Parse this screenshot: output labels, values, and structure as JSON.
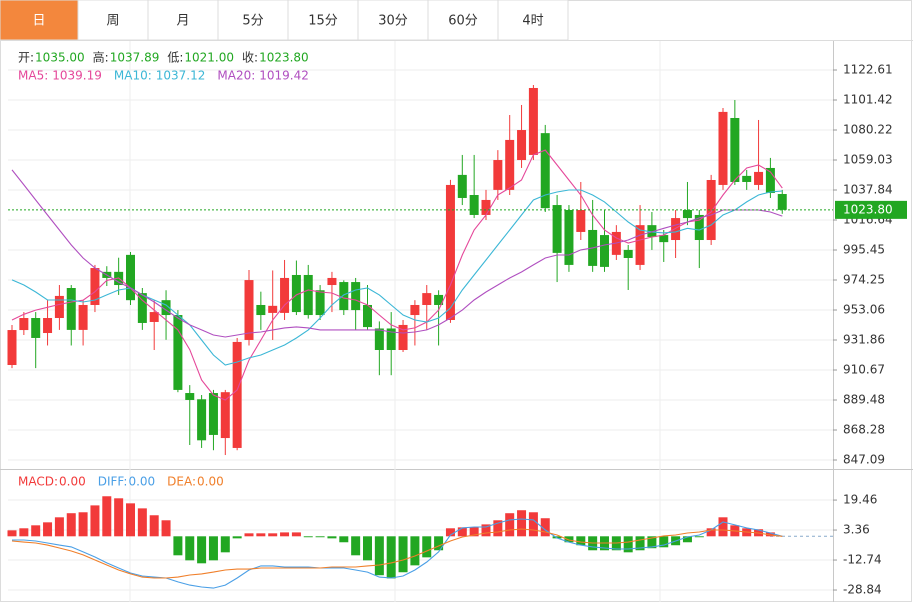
{
  "tabs": [
    "日",
    "周",
    "月",
    "5分",
    "15分",
    "30分",
    "60分",
    "4时"
  ],
  "active_tab": 0,
  "chart_data": {
    "type": "candlestick",
    "ohlc_info": [
      {
        "name": "开:",
        "value": 1035,
        "label": "1035.00"
      },
      {
        "name": "高:",
        "value": 1037.89,
        "label": "1037.89"
      },
      {
        "name": "低:",
        "value": 1021,
        "label": "1021.00"
      },
      {
        "name": "收:",
        "value": 1023.8,
        "label": "1023.80"
      }
    ],
    "up_color": "#f23a3a",
    "down_color": "#22a722",
    "open": [
      914.2,
      938.9,
      947.4,
      936.8,
      947.4,
      968.6,
      939,
      956.6,
      980,
      980,
      992,
      965,
      944.6,
      960,
      949.5,
      894.4,
      890,
      894.4,
      862.6,
      855.6,
      931.9,
      956.6,
      951,
      951,
      977.8,
      977.8,
      967,
      970.7,
      972.8,
      972.8,
      956.6,
      940,
      940,
      924.8,
      949.5,
      956.6,
      963.7,
      946,
      1048.5,
      1034.3,
      1020.2,
      1037.9,
      1037.9,
      1059,
      1062.6,
      1078,
      1027.2,
      1023.7,
      1008.2,
      1009.6,
      1006,
      992,
      995.5,
      984.9,
      1013,
      1006,
      1002.5,
      1023.7,
      1020.2,
      1002.5,
      1041.4,
      1088.7,
      1047.8,
      1041.4,
      1053.4,
      1035
    ],
    "high": [
      942.5,
      951.6,
      951.6,
      960,
      970.7,
      970.7,
      960,
      984.9,
      984,
      990,
      994,
      968.6,
      960,
      967,
      953,
      900,
      893,
      896.6,
      896.6,
      933.3,
      981.3,
      966,
      981,
      988.4,
      988,
      984.9,
      970.7,
      980,
      974,
      975.7,
      970.7,
      945,
      951.6,
      946,
      960,
      970.7,
      967,
      1045,
      1062.6,
      1062.6,
      1037.9,
      1066,
      1090.8,
      1097.9,
      1112,
      1083.8,
      1034.3,
      1027.2,
      1043.5,
      1030.8,
      1023.7,
      1013,
      999,
      1027.2,
      1022.3,
      1009.6,
      1023.7,
      1043.5,
      1023.7,
      1048.5,
      1095.8,
      1101.4,
      1052,
      1087.3,
      1060.5,
      1037.89
    ],
    "low": [
      912,
      935.4,
      912,
      928,
      939,
      928,
      928,
      951.6,
      970,
      963.7,
      956.6,
      939,
      924.8,
      932,
      895,
      857.7,
      855.6,
      854,
      850.6,
      854,
      928,
      939,
      931.9,
      946,
      949.5,
      947,
      946,
      951.6,
      949.5,
      939,
      939,
      907,
      907,
      923.4,
      928,
      939,
      928,
      944,
      1027.2,
      1018,
      1016.6,
      1030.8,
      1034.3,
      1053.4,
      1059,
      1022.3,
      972.8,
      980,
      1002.5,
      980,
      980,
      988.4,
      967.2,
      981.3,
      995.5,
      987,
      989.8,
      1013,
      982.7,
      999,
      1037.9,
      1041.4,
      1037.9,
      1037.9,
      1032.2,
      1021
    ],
    "close": [
      938.9,
      947.4,
      933.3,
      947.4,
      963,
      939,
      956.6,
      982.7,
      975.7,
      970.7,
      960,
      943.9,
      951.6,
      949.5,
      896.6,
      889.5,
      861,
      864.8,
      895,
      930.5,
      974.2,
      949.5,
      956,
      975.7,
      951.6,
      949.5,
      949.5,
      975.7,
      953,
      953,
      941,
      924.8,
      924.8,
      942.5,
      956.6,
      965,
      956.6,
      1041.4,
      1032.2,
      1020.2,
      1030.8,
      1059,
      1073.2,
      1080.2,
      1109.9,
      1025,
      993.4,
      984.9,
      1023.7,
      984.2,
      983.5,
      1008.2,
      989.8,
      1013,
      1004.6,
      1001,
      1018,
      1018,
      1002.5,
      1044.9,
      1093,
      1043.5,
      1043.5,
      1050.6,
      1035.7,
      1023.8
    ],
    "series": [
      {
        "name": "MA5:",
        "color": "#e5489a",
        "values": [
          946,
          950,
          953,
          955,
          957,
          958.7,
          960,
          966,
          974,
          975.7,
          968.6,
          960,
          953,
          946,
          939,
          925,
          903.6,
          893,
          889.5,
          896.6,
          917.7,
          931.9,
          946,
          956.6,
          963.7,
          967.2,
          965.8,
          965.1,
          961.5,
          960.1,
          956.6,
          949.5,
          942.5,
          939,
          940.4,
          944.6,
          953,
          970.7,
          991.9,
          1009.6,
          1020.2,
          1034.3,
          1039.3,
          1044.9,
          1062.6,
          1066,
          1055.5,
          1044.9,
          1034.3,
          1020.2,
          1009.6,
          1003.9,
          1000.4,
          1002.5,
          1004.6,
          1006,
          1010.8,
          1015.2,
          1016.6,
          1022.3,
          1034.3,
          1044.9,
          1053.4,
          1055.5,
          1050.6,
          1039.19
        ]
      },
      {
        "name": "MA10:",
        "color": "#3cb7d6",
        "values": [
          974.3,
          970.7,
          965.8,
          960.1,
          960.1,
          960.1,
          958.7,
          960.1,
          963.7,
          967.2,
          968.6,
          963.7,
          960.1,
          956.6,
          949.5,
          942.5,
          931.9,
          921.3,
          914.2,
          916.3,
          919.2,
          921.3,
          924.8,
          928.3,
          933.3,
          939,
          947.4,
          956.6,
          963.7,
          967.2,
          968.6,
          963.7,
          956.6,
          949.5,
          946,
          944.6,
          947.4,
          954.5,
          967.2,
          977.8,
          988.4,
          999,
          1009.6,
          1020.2,
          1030.8,
          1034.3,
          1036.4,
          1037.8,
          1037.8,
          1034.3,
          1029.4,
          1022.3,
          1015.2,
          1009.6,
          1008.2,
          1007.5,
          1008.2,
          1010.8,
          1009.6,
          1013.1,
          1020.2,
          1023.7,
          1029.4,
          1034.3,
          1036.4,
          1037.12
        ]
      },
      {
        "name": "MA20:",
        "color": "#b04fc0",
        "values": [
          1052,
          1041.4,
          1030.8,
          1020.2,
          1009.6,
          999,
          989.8,
          982.7,
          977.8,
          972.8,
          968.6,
          963.7,
          958.7,
          953,
          947.4,
          942.5,
          939,
          935.4,
          934,
          935.4,
          936.8,
          937.5,
          939,
          940.4,
          941.1,
          940.4,
          939,
          939,
          939,
          939,
          939,
          939,
          937.5,
          936.8,
          937.5,
          939,
          942.5,
          947.4,
          953,
          960.1,
          965.8,
          970.7,
          975.7,
          979.9,
          984.9,
          989.8,
          991.9,
          991.9,
          995.5,
          996.9,
          999,
          1000.4,
          1002.5,
          1006,
          1008.2,
          1010.8,
          1013.1,
          1015.2,
          1018.1,
          1020.2,
          1023.7,
          1023.7,
          1023.7,
          1023.7,
          1022.3,
          1019.42
        ]
      }
    ],
    "last_price": {
      "value": 1023.8,
      "label": "1023.80"
    },
    "ylim": [
      841.44,
      1141.68
    ],
    "yticks": [
      1122.61,
      1101.42,
      1080.22,
      1059.03,
      1037.84,
      1016.64,
      995.45,
      974.25,
      953.06,
      931.86,
      910.67,
      889.48,
      868.28,
      847.09
    ],
    "grid": true,
    "macd_legend": [
      {
        "name": "MACD:",
        "value": 0,
        "label": "0.00",
        "color": "#f23a3a"
      },
      {
        "name": "DIFF:",
        "value": 0,
        "label": "0.00",
        "color": "#4a9fe6"
      },
      {
        "name": "DEA:",
        "value": 0,
        "label": "0.00",
        "color": "#f07f2a"
      }
    ],
    "macd": [
      3.2,
      4.3,
      5.9,
      7.5,
      10.2,
      12.4,
      12.9,
      16.6,
      21.5,
      20.4,
      17.7,
      15,
      11.3,
      8.6,
      -10.2,
      -12.9,
      -14.5,
      -12.9,
      -8.6,
      -1.1,
      1.6,
      1.6,
      1.6,
      2.1,
      2.1,
      -0.5,
      -0.5,
      -1.1,
      -3.2,
      -10.2,
      -12.9,
      -20.9,
      -22.6,
      -19.3,
      -15.6,
      -11.3,
      -7.5,
      4.3,
      4.8,
      4.8,
      6.4,
      8.6,
      12.4,
      14,
      12.9,
      9.7,
      -1.1,
      -3.2,
      -4.8,
      -7.5,
      -7.5,
      -7.5,
      -8.6,
      -7.5,
      -6.4,
      -5.9,
      -4.8,
      -3.2,
      -0.5,
      4.3,
      10.2,
      5.9,
      4.3,
      3.8,
      2.1,
      0
    ],
    "diff": [
      -2.0,
      -2.0,
      -2.5,
      -3.6,
      -4.7,
      -5.7,
      -8.4,
      -11.1,
      -14.3,
      -17.0,
      -19.7,
      -21.3,
      -21.9,
      -22.4,
      -24.5,
      -26.2,
      -27.2,
      -27.8,
      -26.2,
      -22.4,
      -18.1,
      -15.9,
      -15.9,
      -16.5,
      -16.5,
      -16.5,
      -17.0,
      -17.0,
      -17.0,
      -18.1,
      -19.2,
      -21.9,
      -22.4,
      -21.3,
      -18.1,
      -13.8,
      -8.4,
      0.7,
      4.5,
      5.0,
      5.0,
      7.1,
      8.8,
      9.3,
      8.8,
      3.4,
      -0.9,
      -3.1,
      -4.7,
      -5.7,
      -6.3,
      -6.8,
      -6.8,
      -6.3,
      -5.7,
      -4.7,
      -2.5,
      -0.4,
      0.7,
      3.4,
      7.7,
      6.1,
      4.5,
      3.4,
      1.8,
      0
    ],
    "dea": [
      -2.5,
      -3.1,
      -3.6,
      -4.7,
      -6.3,
      -7.9,
      -10.0,
      -12.7,
      -15.4,
      -18.1,
      -20.2,
      -21.9,
      -22.4,
      -22.4,
      -21.9,
      -20.8,
      -20.2,
      -19.2,
      -18.1,
      -17.6,
      -17.6,
      -17.0,
      -17.0,
      -17.0,
      -17.0,
      -17.0,
      -17.0,
      -16.5,
      -16.5,
      -16.5,
      -15.9,
      -15.4,
      -14.3,
      -12.7,
      -10.6,
      -7.9,
      -5.2,
      -2.5,
      -0.4,
      0.7,
      1.8,
      2.3,
      3.4,
      3.9,
      3.4,
      2.3,
      0.7,
      -2.0,
      -3.1,
      -3.6,
      -3.6,
      -3.6,
      -3.1,
      -2.0,
      -0.9,
      0.2,
      0.7,
      1.8,
      2.3,
      3.4,
      3.4,
      2.9,
      2.3,
      1.8,
      0.7,
      0
    ],
    "y2lim": [
      -34.2,
      35.6
    ],
    "y2ticks": [
      19.46,
      3.36,
      -12.74,
      -28.84
    ]
  }
}
